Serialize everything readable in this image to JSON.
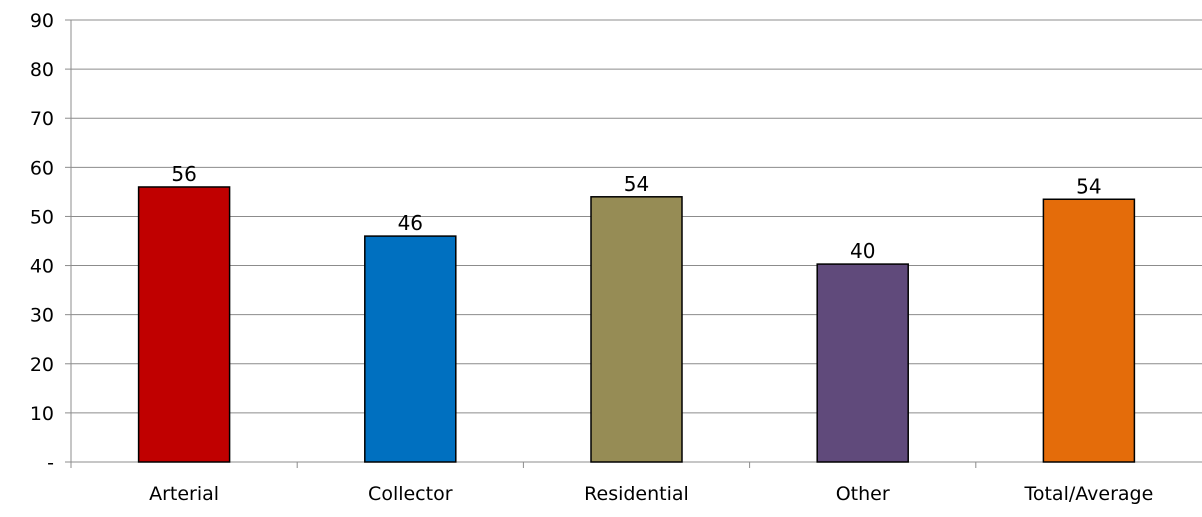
{
  "chart_data": {
    "type": "bar",
    "title": "",
    "xlabel": "",
    "ylabel": "",
    "categories": [
      "Arterial",
      "Collector",
      "Residential",
      "Other",
      "Total/Average"
    ],
    "values": [
      56,
      46,
      54,
      40.3,
      53.5
    ],
    "data_labels": [
      "56",
      "46",
      "54",
      "40",
      "54"
    ],
    "colors": [
      "#C00000",
      "#0070C0",
      "#968C55",
      "#604A7B",
      "#E46C0A"
    ],
    "ylim": [
      0,
      90
    ],
    "yticks": [
      0,
      10,
      20,
      30,
      40,
      50,
      60,
      70,
      80,
      90
    ],
    "ytick_labels": [
      "-",
      "10",
      "20",
      "30",
      "40",
      "50",
      "60",
      "70",
      "80",
      "90"
    ],
    "grid": true,
    "legend": "none"
  }
}
